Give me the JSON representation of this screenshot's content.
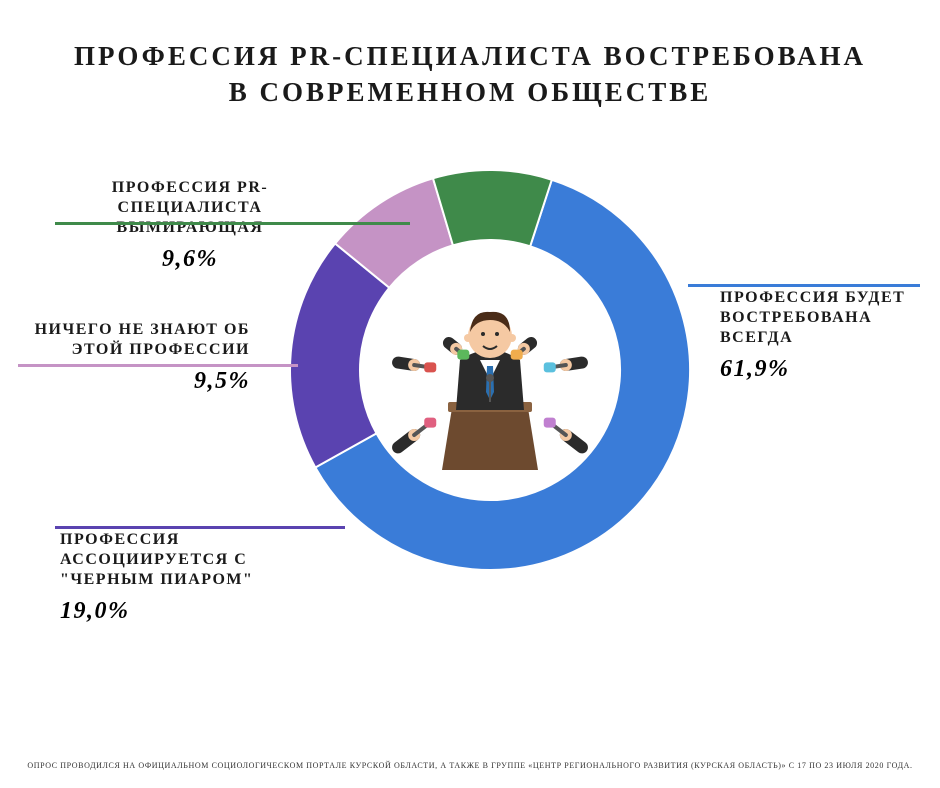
{
  "title": "ПРОФЕССИЯ PR-СПЕЦИАЛИСТА ВОСТРЕБОВАНА\nВ СОВРЕМЕННОМ ОБЩЕСТВЕ",
  "chart": {
    "type": "donut",
    "start_angle_deg": 18,
    "direction": "clockwise",
    "inner_radius": 130,
    "outer_radius": 200,
    "center_bg": "#ffffff",
    "gap_color": "#ffffff",
    "gap_width": 2,
    "slices": [
      {
        "key": "always",
        "value": 61.9,
        "color": "#3a7cd8"
      },
      {
        "key": "black_pr",
        "value": 19.0,
        "color": "#5a43b0"
      },
      {
        "key": "dont_know",
        "value": 9.5,
        "color": "#c593c5"
      },
      {
        "key": "dying",
        "value": 9.6,
        "color": "#3f8a4a"
      }
    ]
  },
  "callouts": {
    "always": {
      "label": "ПРОФЕССИЯ БУДЕТ\nВОСТРЕБОВАНА ВСЕГДА",
      "value": "61,9%",
      "underline_color": "#3a7cd8"
    },
    "black_pr": {
      "label": "ПРОФЕССИЯ\nАССОЦИИРУЕТСЯ С\n\"ЧЕРНЫМ ПИАРОМ\"",
      "value": "19,0%",
      "underline_color": "#5a43b0"
    },
    "dont_know": {
      "label": "НИЧЕГО НЕ ЗНАЮТ ОБ\nЭТОЙ ПРОФЕССИИ",
      "value": "9,5%",
      "underline_color": "#c593c5"
    },
    "dying": {
      "label": "ПРОФЕССИЯ PR-СПЕЦИАЛИСТА\nВЫМИРАЮЩАЯ",
      "value": "9,6%",
      "underline_color": "#3f8a4a"
    }
  },
  "illustration": {
    "suit_color": "#2b2b2b",
    "skin_color": "#f5c9a3",
    "hair_color": "#4a2c18",
    "shirt_color": "#ffffff",
    "tie_color": "#2a6fb0",
    "podium_color": "#6d4a2f",
    "podium_top": "#8a6240",
    "mic_colors": [
      "#d9534f",
      "#5cb85c",
      "#f0ad4e",
      "#5bc0de",
      "#c080d0",
      "#e06080"
    ]
  },
  "footer": "ОПРОС ПРОВОДИЛСЯ НА ОФИЦИАЛЬНОМ СОЦИОЛОГИЧЕСКОМ ПОРТАЛЕ КУРСКОЙ ОБЛАСТИ, А ТАКЖЕ В ГРУППЕ «ЦЕНТР РЕГИОНАЛЬНОГО РАЗВИТИЯ (КУРСКАЯ ОБЛАСТЬ)» С 17 ПО 23 ИЮЛЯ 2020 ГОДА.",
  "typography": {
    "title_fontsize": 27,
    "label_fontsize": 16,
    "value_fontsize": 24,
    "footer_fontsize": 8,
    "font_family": "Georgia, serif"
  }
}
